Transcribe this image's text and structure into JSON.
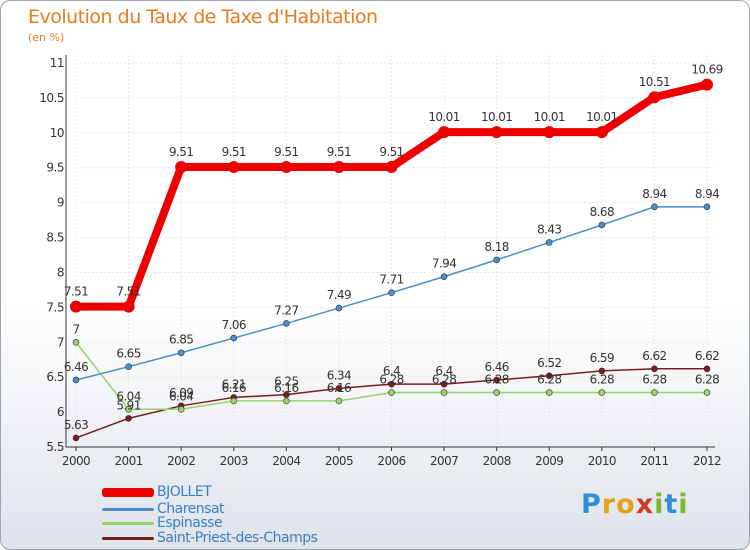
{
  "title": "Evolution du Taux de Taxe d'Habitation",
  "unit_label": "(en %)",
  "logo": {
    "letters": [
      "P",
      "r",
      "o",
      "x",
      "i",
      "t",
      "i"
    ],
    "colors": [
      "#2d8fd5",
      "#e7a21d",
      "#e7a21d",
      "#d23a1f",
      "#7bb829",
      "#2d8fd5",
      "#7bb829"
    ]
  },
  "chart_data": {
    "type": "line",
    "title": "Evolution du Taux de Taxe d'Habitation",
    "ylabel": "(en %)",
    "xlabel": "",
    "x": [
      "2000",
      "2001",
      "2002",
      "2003",
      "2004",
      "2005",
      "2006",
      "2007",
      "2008",
      "2009",
      "2010",
      "2011",
      "2012"
    ],
    "ylim": [
      5.5,
      11
    ],
    "yticks": [
      5.5,
      6,
      6.5,
      7,
      7.5,
      8,
      8.5,
      9,
      9.5,
      10,
      10.5,
      11
    ],
    "ytick_labels": [
      "5.5",
      "6",
      "6.5",
      "7",
      "7.5",
      "8",
      "8.5",
      "9",
      "9.5",
      "10",
      "10.5",
      "11"
    ],
    "grid": true,
    "legend_position": "bottom-left",
    "series": [
      {
        "name": "BJOLLET",
        "color": "#ee0000",
        "values": [
          7.51,
          7.51,
          9.51,
          9.51,
          9.51,
          9.51,
          9.51,
          10.01,
          10.01,
          10.01,
          10.01,
          10.51,
          10.69
        ],
        "labels": [
          "7.51",
          "7.51",
          "9.51",
          "9.51",
          "9.51",
          "9.51",
          "9.51",
          "10.01",
          "10.01",
          "10.01",
          "10.01",
          "10.51",
          "10.69"
        ]
      },
      {
        "name": "Charensat",
        "color": "#4a8fc9",
        "values": [
          6.46,
          6.65,
          6.85,
          7.06,
          7.27,
          7.49,
          7.71,
          7.94,
          8.18,
          8.43,
          8.68,
          8.94,
          8.94
        ],
        "labels": [
          "6.46",
          "6.65",
          "6.85",
          "7.06",
          "7.27",
          "7.49",
          "7.71",
          "7.94",
          "8.18",
          "8.43",
          "8.68",
          "8.94",
          "8.94"
        ]
      },
      {
        "name": "Espinasse",
        "color": "#98d36b",
        "values": [
          7,
          6.04,
          6.04,
          6.16,
          6.16,
          6.16,
          6.28,
          6.28,
          6.28,
          6.28,
          6.28,
          6.28,
          6.28
        ],
        "labels": [
          "7",
          "6.04",
          "6.04",
          "6.16",
          "6.16",
          "6.16",
          "6.28",
          "6.28",
          "6.28",
          "6.28",
          "6.28",
          "6.28",
          "6.28"
        ]
      },
      {
        "name": "Saint-Priest-des-Champs",
        "color": "#7a1c20",
        "values": [
          5.63,
          5.91,
          6.09,
          6.21,
          6.25,
          6.34,
          6.4,
          6.4,
          6.46,
          6.52,
          6.59,
          6.62,
          6.62
        ],
        "labels": [
          "5.63",
          "5.91",
          "6.09",
          "6.21",
          "6.25",
          "6.34",
          "6.4",
          "6.4",
          "6.46",
          "6.52",
          "6.59",
          "6.62",
          "6.62"
        ]
      }
    ]
  }
}
